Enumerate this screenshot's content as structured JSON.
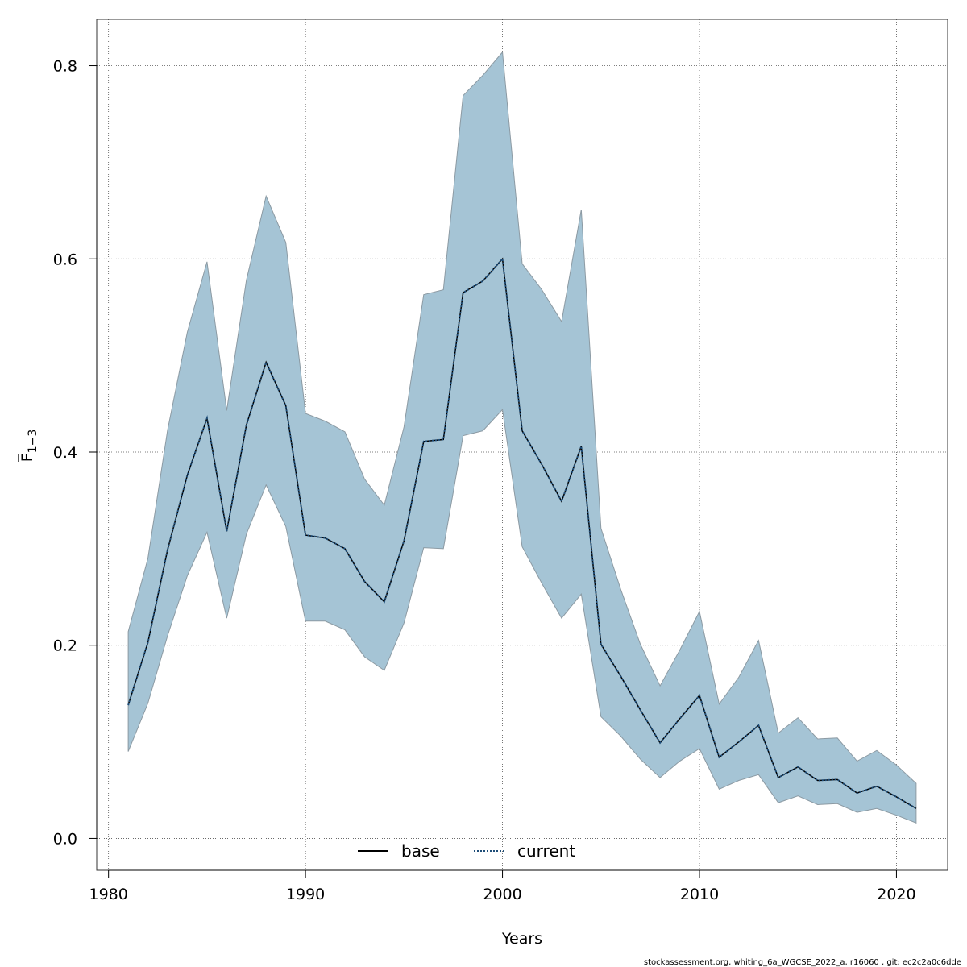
{
  "chart_data": {
    "type": "area",
    "title": "",
    "xlabel": "Years",
    "ylabel_main": "F",
    "ylabel_sub": "1−3",
    "xlim": [
      1979.4,
      2022.6
    ],
    "ylim": [
      -0.033,
      0.848
    ],
    "xticks": [
      1980,
      1990,
      2000,
      2010,
      2020
    ],
    "yticks": [
      0.0,
      0.2,
      0.4,
      0.6,
      0.8
    ],
    "ytick_labels": [
      "0.0",
      "0.2",
      "0.4",
      "0.6",
      "0.8"
    ],
    "grid": true,
    "legend_position": "bottom-center",
    "years": [
      1981,
      1982,
      1983,
      1984,
      1985,
      1986,
      1987,
      1988,
      1989,
      1990,
      1991,
      1992,
      1993,
      1994,
      1995,
      1996,
      1997,
      1998,
      1999,
      2000,
      2001,
      2002,
      2003,
      2004,
      2005,
      2006,
      2007,
      2008,
      2009,
      2010,
      2011,
      2012,
      2013,
      2014,
      2015,
      2016,
      2017,
      2018,
      2019,
      2020,
      2021
    ],
    "upper": [
      0.214,
      0.29,
      0.423,
      0.524,
      0.597,
      0.443,
      0.578,
      0.665,
      0.617,
      0.44,
      0.432,
      0.421,
      0.372,
      0.345,
      0.426,
      0.563,
      0.568,
      0.769,
      0.79,
      0.814,
      0.595,
      0.568,
      0.535,
      0.651,
      0.321,
      0.258,
      0.201,
      0.158,
      0.195,
      0.235,
      0.139,
      0.167,
      0.205,
      0.109,
      0.125,
      0.103,
      0.104,
      0.08,
      0.091,
      0.076,
      0.057
    ],
    "lower": [
      0.09,
      0.14,
      0.21,
      0.272,
      0.317,
      0.228,
      0.315,
      0.366,
      0.323,
      0.225,
      0.225,
      0.216,
      0.188,
      0.174,
      0.223,
      0.301,
      0.3,
      0.417,
      0.422,
      0.444,
      0.302,
      0.264,
      0.228,
      0.253,
      0.126,
      0.106,
      0.082,
      0.063,
      0.08,
      0.093,
      0.051,
      0.06,
      0.066,
      0.037,
      0.044,
      0.035,
      0.036,
      0.027,
      0.031,
      0.024,
      0.016
    ],
    "series": [
      {
        "name": "base",
        "style": "solid",
        "color": "#000000",
        "values": [
          0.138,
          0.203,
          0.299,
          0.376,
          0.435,
          0.318,
          0.428,
          0.493,
          0.448,
          0.314,
          0.311,
          0.3,
          0.266,
          0.245,
          0.308,
          0.411,
          0.413,
          0.565,
          0.577,
          0.6,
          0.422,
          0.387,
          0.349,
          0.406,
          0.201,
          0.168,
          0.133,
          0.099,
          0.124,
          0.148,
          0.084,
          0.1,
          0.117,
          0.063,
          0.074,
          0.06,
          0.061,
          0.047,
          0.054,
          0.043,
          0.031
        ]
      },
      {
        "name": "current",
        "style": "dotted",
        "color": "#1f4e79",
        "values": [
          0.138,
          0.203,
          0.299,
          0.376,
          0.435,
          0.318,
          0.428,
          0.493,
          0.448,
          0.314,
          0.311,
          0.3,
          0.266,
          0.245,
          0.308,
          0.411,
          0.413,
          0.565,
          0.577,
          0.6,
          0.422,
          0.387,
          0.349,
          0.406,
          0.201,
          0.168,
          0.133,
          0.099,
          0.124,
          0.148,
          0.084,
          0.1,
          0.117,
          0.063,
          0.074,
          0.06,
          0.061,
          0.047,
          0.054,
          0.043,
          0.031
        ]
      }
    ],
    "band_color": "#a5c4d5",
    "band_stroke": "#8c9aa3"
  },
  "footer_text": "stockassessment.org, whiting_6a_WGCSE_2022_a, r16060 , git: ec2c2a0c6dde"
}
